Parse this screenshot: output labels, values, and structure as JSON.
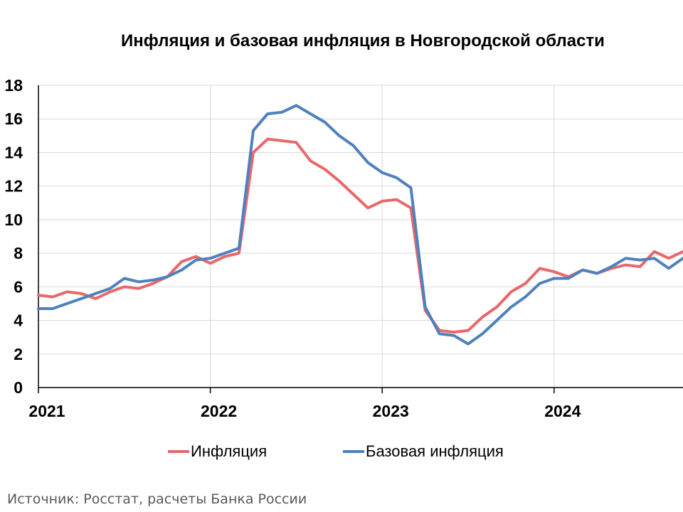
{
  "source": "Источник: Росстат, расчеты Банка России",
  "colors": {
    "inflation": "#E8686A",
    "core": "#4F81BD",
    "grid": "#D9D9D9",
    "axis": "#000000"
  },
  "chart_data": {
    "type": "line",
    "title": "Инфляция и базовая инфляция в Новгородской области",
    "xlabel": "",
    "ylabel": "",
    "ylim": [
      0,
      18
    ],
    "yticks": [
      "0",
      "2",
      "4",
      "6",
      "8",
      "10",
      "12",
      "14",
      "16",
      "18"
    ],
    "xticks": [
      "2021",
      "2022",
      "2023",
      "2024"
    ],
    "xlim": [
      2021.0,
      2024.75
    ],
    "grid": true,
    "legend_position": "bottom",
    "series": [
      {
        "name": "Инфляция",
        "color": "#E8686A",
        "x": [
          2021.0,
          2021.0833,
          2021.1667,
          2021.25,
          2021.3333,
          2021.4167,
          2021.5,
          2021.5833,
          2021.6667,
          2021.75,
          2021.8333,
          2021.9167,
          2022.0,
          2022.0833,
          2022.1667,
          2022.25,
          2022.3333,
          2022.4167,
          2022.5,
          2022.5833,
          2022.6667,
          2022.75,
          2022.8333,
          2022.9167,
          2023.0,
          2023.0833,
          2023.1667,
          2023.25,
          2023.3333,
          2023.4167,
          2023.5,
          2023.5833,
          2023.6667,
          2023.75,
          2023.8333,
          2023.9167,
          2024.0,
          2024.0833,
          2024.1667,
          2024.25,
          2024.3333,
          2024.4167,
          2024.5,
          2024.5833,
          2024.6667,
          2024.75
        ],
        "values": [
          5.5,
          5.4,
          5.7,
          5.6,
          5.3,
          5.7,
          6.0,
          5.9,
          6.2,
          6.6,
          7.5,
          7.8,
          7.4,
          7.8,
          8.0,
          14.0,
          14.8,
          14.7,
          14.6,
          13.5,
          13.0,
          12.3,
          11.5,
          10.7,
          11.1,
          11.2,
          10.7,
          4.6,
          3.4,
          3.3,
          3.4,
          4.2,
          4.8,
          5.7,
          6.2,
          7.1,
          6.9,
          6.6,
          7.0,
          6.8,
          7.1,
          7.3,
          7.2,
          8.1,
          7.7,
          8.1
        ]
      },
      {
        "name": "Базовая инфляция",
        "color": "#4F81BD",
        "x": [
          2021.0,
          2021.0833,
          2021.1667,
          2021.25,
          2021.3333,
          2021.4167,
          2021.5,
          2021.5833,
          2021.6667,
          2021.75,
          2021.8333,
          2021.9167,
          2022.0,
          2022.0833,
          2022.1667,
          2022.25,
          2022.3333,
          2022.4167,
          2022.5,
          2022.5833,
          2022.6667,
          2022.75,
          2022.8333,
          2022.9167,
          2023.0,
          2023.0833,
          2023.1667,
          2023.25,
          2023.3333,
          2023.4167,
          2023.5,
          2023.5833,
          2023.6667,
          2023.75,
          2023.8333,
          2023.9167,
          2024.0,
          2024.0833,
          2024.1667,
          2024.25,
          2024.3333,
          2024.4167,
          2024.5,
          2024.5833,
          2024.6667,
          2024.75
        ],
        "values": [
          4.7,
          4.7,
          5.0,
          5.3,
          5.6,
          5.9,
          6.5,
          6.3,
          6.4,
          6.6,
          7.0,
          7.6,
          7.7,
          8.0,
          8.3,
          15.3,
          16.3,
          16.4,
          16.8,
          16.3,
          15.8,
          15.0,
          14.4,
          13.4,
          12.8,
          12.5,
          11.9,
          4.8,
          3.2,
          3.1,
          2.6,
          3.2,
          4.0,
          4.8,
          5.4,
          6.2,
          6.5,
          6.5,
          7.0,
          6.8,
          7.2,
          7.7,
          7.6,
          7.7,
          7.1,
          7.7
        ]
      }
    ]
  }
}
